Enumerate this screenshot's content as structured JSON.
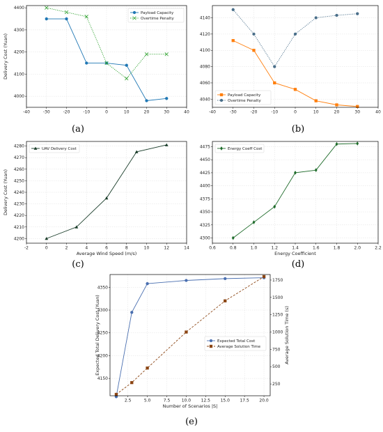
{
  "panel_labels": [
    "(a)",
    "(b)",
    "(c)",
    "(d)",
    "(e)"
  ],
  "chart_data": [
    {
      "id": "a",
      "type": "line",
      "xlabel": "",
      "ylabel": "Delivery Cost (Yuan)",
      "xlim": [
        -40,
        40
      ],
      "ylim": [
        3950,
        4410
      ],
      "xticks": [
        -40,
        -30,
        -20,
        -10,
        0,
        10,
        20,
        30,
        40
      ],
      "yticks": [
        4000,
        4100,
        4200,
        4300,
        4400
      ],
      "grid": true,
      "legend_position": "top-right",
      "series": [
        {
          "name": "Payload Capacity",
          "color": "#1f77b4",
          "style": "solid",
          "marker": "circle",
          "x": [
            -30,
            -20,
            -10,
            0,
            10,
            20,
            30
          ],
          "y": [
            4350,
            4350,
            4150,
            4150,
            4140,
            3980,
            3990
          ]
        },
        {
          "name": "Overtime Penalty",
          "color": "#2ca02c",
          "style": "dotted",
          "marker": "x",
          "x": [
            -30,
            -20,
            -10,
            0,
            10,
            20,
            30
          ],
          "y": [
            4400,
            4380,
            4360,
            4150,
            4080,
            4190,
            4190
          ]
        }
      ]
    },
    {
      "id": "b",
      "type": "line",
      "xlabel": "",
      "ylabel": "",
      "xlim": [
        -40,
        40
      ],
      "ylim": [
        4030,
        4155
      ],
      "xticks": [
        -40,
        -30,
        -20,
        -10,
        0,
        10,
        20,
        30,
        40
      ],
      "yticks": [
        4040,
        4060,
        4080,
        4100,
        4120,
        4140
      ],
      "grid": true,
      "legend_position": "bottom-left",
      "series": [
        {
          "name": "Payload Capacity",
          "color": "#ff7f0e",
          "style": "solid",
          "marker": "square",
          "x": [
            -30,
            -20,
            -10,
            0,
            10,
            20,
            30
          ],
          "y": [
            4112,
            4100,
            4060,
            4052,
            4038,
            4033,
            4031
          ]
        },
        {
          "name": "Overtime Penalty",
          "color": "#4a6f8a",
          "style": "dotted",
          "marker": "circle",
          "x": [
            -30,
            -20,
            -10,
            0,
            10,
            20,
            30
          ],
          "y": [
            4150,
            4120,
            4080,
            4120,
            4140,
            4143,
            4145
          ]
        }
      ]
    },
    {
      "id": "c",
      "type": "line",
      "xlabel": "Average Wind Speed (m/s)",
      "ylabel": "Delivery Cost (Yuan)",
      "xlim": [
        -2,
        14
      ],
      "ylim": [
        4196,
        4284
      ],
      "xticks": [
        -2,
        0,
        2,
        4,
        6,
        8,
        10,
        12,
        14
      ],
      "yticks": [
        4200,
        4210,
        4220,
        4230,
        4240,
        4250,
        4260,
        4270,
        4280
      ],
      "grid": true,
      "legend_position": "top-left",
      "series": [
        {
          "name": "UAV Delivery Cost",
          "color": "#1a3d2a",
          "style": "solid",
          "marker": "triangle",
          "x": [
            0,
            3,
            6,
            9,
            12
          ],
          "y": [
            4200,
            4210,
            4235,
            4275,
            4281
          ]
        }
      ]
    },
    {
      "id": "d",
      "type": "line",
      "xlabel": "Energy Coefficient",
      "ylabel": "",
      "xlim": [
        0.6,
        2.2
      ],
      "ylim": [
        4290,
        4485
      ],
      "xticks": [
        0.6,
        0.8,
        1.0,
        1.2,
        1.4,
        1.6,
        1.8,
        2.0,
        2.2
      ],
      "yticks": [
        4300,
        4325,
        4350,
        4375,
        4400,
        4425,
        4450,
        4475
      ],
      "grid": true,
      "legend_position": "top-left",
      "series": [
        {
          "name": "Energy Coeff Cost",
          "color": "#1e6b2a",
          "style": "solid",
          "marker": "diamond",
          "x": [
            0.8,
            1.0,
            1.2,
            1.4,
            1.6,
            1.8,
            2.0
          ],
          "y": [
            4300,
            4330,
            4360,
            4425,
            4430,
            4480,
            4481
          ]
        }
      ]
    },
    {
      "id": "e",
      "type": "line",
      "xlabel": "Number of Scenarios |S|",
      "ylabel": "Expected Total Delivery Cost (Yuan)",
      "ylabel_right": "Average Solution Time (s)",
      "xlim": [
        0.2,
        20.8
      ],
      "ylim": [
        4112,
        4378
      ],
      "ylim_right": [
        80,
        1830
      ],
      "xticks": [
        2.5,
        5.0,
        7.5,
        10.0,
        12.5,
        15.0,
        17.5,
        20.0
      ],
      "yticks": [
        4150,
        4200,
        4250,
        4300,
        4350
      ],
      "yticks_right": [
        250,
        500,
        750,
        1000,
        1250,
        1500,
        1750
      ],
      "grid": true,
      "legend_position": "center-right",
      "series": [
        {
          "name": "Expected Total Cost",
          "axis": "left",
          "color": "#4a6fb0",
          "style": "solid",
          "marker": "circle",
          "x": [
            1,
            3,
            5,
            10,
            15,
            20
          ],
          "y": [
            4110,
            4295,
            4358,
            4365,
            4369,
            4371
          ]
        },
        {
          "name": "Average Solution Time",
          "axis": "right",
          "color": "#8b4513",
          "style": "dashed",
          "marker": "square",
          "x": [
            1,
            3,
            5,
            10,
            15,
            20
          ],
          "y": [
            100,
            270,
            480,
            1000,
            1450,
            1800
          ]
        }
      ]
    }
  ]
}
